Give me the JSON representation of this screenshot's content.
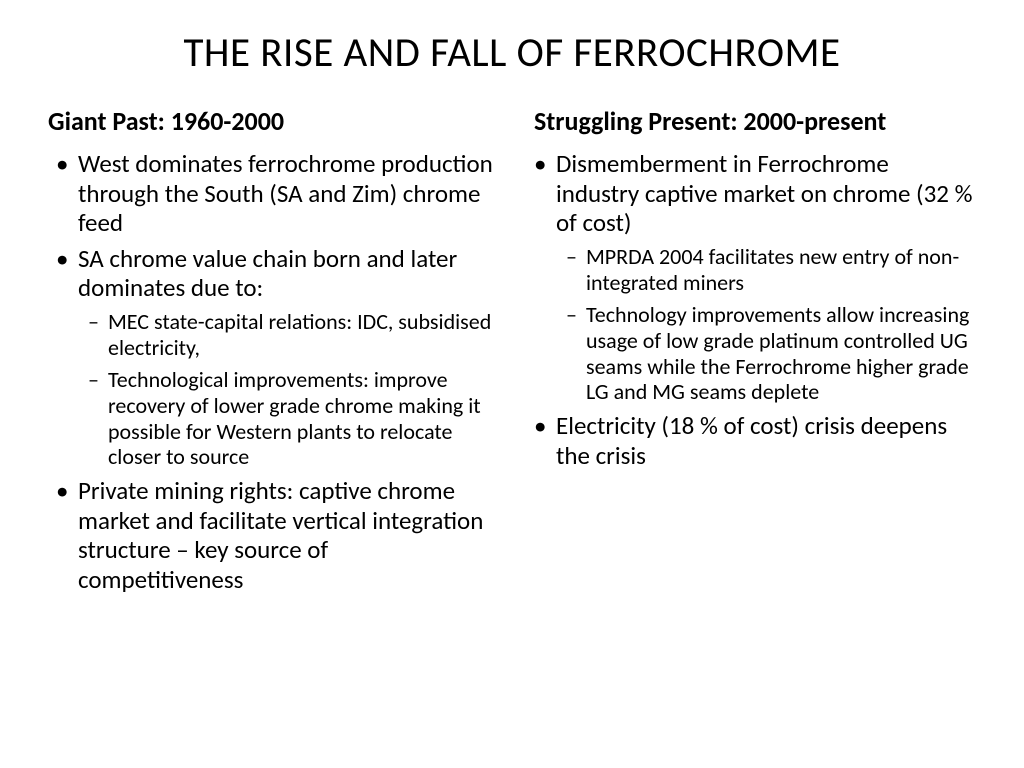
{
  "title": "THE RISE AND FALL OF FERROCHROME",
  "left": {
    "heading": "Giant Past: 1960-2000",
    "b1": "West dominates ferrochrome production through the South (SA and Zim) chrome feed",
    "b2": "SA chrome value chain born and later dominates due to:",
    "b2s1": "MEC state-capital relations: IDC, subsidised electricity,",
    "b2s2": "Technological improvements: improve recovery of lower grade chrome making it possible for Western plants to relocate closer to source",
    "b3": "Private mining rights: captive chrome market and facilitate vertical integration structure – key source of competitiveness"
  },
  "right": {
    "heading": "Struggling Present: 2000-present",
    "b1": "Dismemberment in Ferrochrome industry captive market on chrome (32 % of cost)",
    "b1s1": "MPRDA 2004 facilitates new entry of non-integrated miners",
    "b1s2": "Technology improvements allow increasing usage of low grade platinum controlled UG seams while the Ferrochrome higher grade LG and MG seams deplete",
    "b2": "Electricity (18 % of cost) crisis deepens the crisis"
  }
}
